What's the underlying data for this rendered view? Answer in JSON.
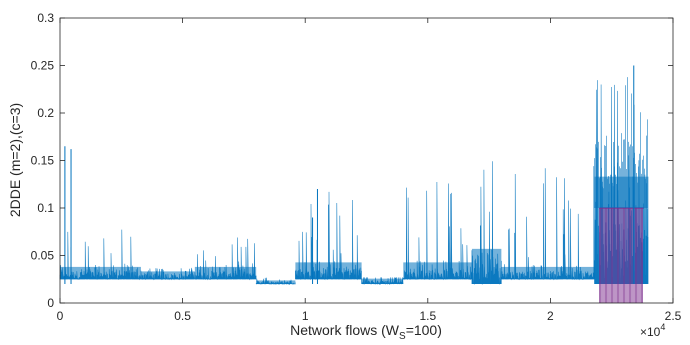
{
  "chart_data": {
    "type": "line",
    "title": "",
    "xlabel": "Network flows (W",
    "xlabel_sub": "S",
    "xlabel_tail": "=100)",
    "ylabel": "2DDE (m=2),(c=3)",
    "x_exponent_label": "×10",
    "x_exponent_power": "4",
    "xlim": [
      0,
      25000
    ],
    "ylim": [
      0,
      0.3
    ],
    "xticks": [
      0,
      5000,
      10000,
      15000,
      20000,
      25000
    ],
    "xtick_labels": [
      "0",
      "0.5",
      "1",
      "1.5",
      "2",
      "2.5"
    ],
    "yticks": [
      0,
      0.05,
      0.1,
      0.15,
      0.2,
      0.25,
      0.3
    ],
    "ytick_labels": [
      "0",
      "0.05",
      "0.1",
      "0.15",
      "0.2",
      "0.25",
      "0.3"
    ],
    "grid": false,
    "colors": {
      "series": "#0072BD",
      "highlight": "#7E2F8E",
      "axis": "#262626"
    },
    "series": [
      {
        "segments": [
          {
            "x_start": 0,
            "x_end": 3300,
            "base": 0.025,
            "typical": 0.04,
            "peak": 0.08
          },
          {
            "x_start": 3300,
            "x_end": 5500,
            "base": 0.025,
            "typical": 0.035,
            "peak": 0.037
          },
          {
            "x_start": 5500,
            "x_end": 8000,
            "base": 0.025,
            "typical": 0.04,
            "peak": 0.07
          },
          {
            "x_start": 8000,
            "x_end": 9600,
            "base": 0.02,
            "typical": 0.025,
            "peak": 0.027
          },
          {
            "x_start": 9600,
            "x_end": 12300,
            "base": 0.025,
            "typical": 0.045,
            "peak": 0.12
          },
          {
            "x_start": 12300,
            "x_end": 14000,
            "base": 0.02,
            "typical": 0.027,
            "peak": 0.027
          },
          {
            "x_start": 14000,
            "x_end": 16800,
            "base": 0.025,
            "typical": 0.045,
            "peak": 0.14
          },
          {
            "x_start": 16800,
            "x_end": 18000,
            "base": 0.02,
            "typical": 0.06,
            "peak": 0.17
          },
          {
            "x_start": 18000,
            "x_end": 21800,
            "base": 0.025,
            "typical": 0.04,
            "peak": 0.15
          },
          {
            "x_start": 21800,
            "x_end": 24000,
            "base": 0.02,
            "typical": 0.14,
            "peak": 0.25
          }
        ],
        "spikes": [
          {
            "x": 200,
            "y": 0.165
          },
          {
            "x": 450,
            "y": 0.162
          },
          {
            "x": 10300,
            "y": 0.09
          },
          {
            "x": 10500,
            "y": 0.12
          },
          {
            "x": 23400,
            "y": 0.25
          }
        ],
        "highlight_block": {
          "x_start": 22000,
          "x_end": 23800,
          "low": 0,
          "high": 0.1
        }
      }
    ]
  }
}
